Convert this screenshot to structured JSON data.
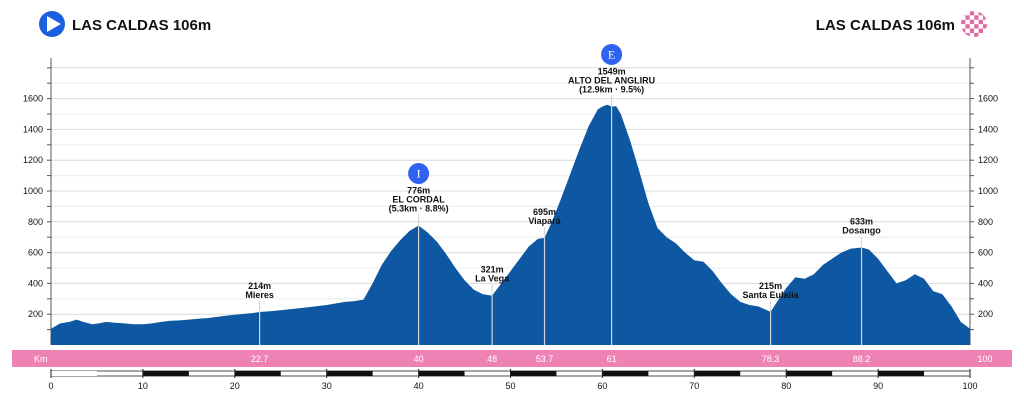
{
  "header": {
    "start_label": "LAS CALDAS 106m",
    "finish_label": "LAS CALDAS 106m",
    "start_icon": "start-arrow-icon",
    "finish_icon": "checkered-flag-icon"
  },
  "colors": {
    "profile": "#0e57a2",
    "km_band": "#ee82b4",
    "badge": "#2f62f0",
    "grid": "#dddddd"
  },
  "chart_data": {
    "type": "area",
    "title": "",
    "xlabel": "",
    "ylabel": "",
    "xlim": [
      0,
      100
    ],
    "ylim": [
      0,
      1800
    ],
    "y_ticks": [
      200,
      400,
      600,
      800,
      1000,
      1200,
      1400,
      1600
    ],
    "x_ticks": [
      0,
      10,
      20,
      30,
      40,
      50,
      60,
      70,
      80,
      90,
      100
    ],
    "grid": true,
    "profile": {
      "x": [
        0,
        1,
        2,
        2.8,
        3.5,
        4.5,
        5.2,
        6,
        7,
        8,
        9,
        10,
        11,
        12,
        13,
        14,
        15,
        16,
        17,
        18,
        19,
        20,
        21,
        22,
        22.7,
        24,
        26,
        28,
        30,
        32,
        33,
        34,
        35,
        36,
        37,
        38,
        39,
        40,
        41,
        42,
        43,
        44,
        45,
        46,
        47,
        48,
        49,
        50,
        51,
        52,
        53,
        53.7,
        54.5,
        55.5,
        56.5,
        57.5,
        58.5,
        59.5,
        60,
        60.5,
        61,
        61.5,
        62,
        63,
        64,
        65,
        66,
        67,
        68,
        69,
        70,
        71,
        72,
        73,
        74,
        75,
        76,
        77,
        78.3,
        79,
        80,
        81,
        82,
        83,
        84,
        85,
        86,
        87,
        88.2,
        89,
        90,
        91,
        92,
        93,
        94,
        95,
        96,
        97,
        98,
        99,
        100
      ],
      "y": [
        106,
        140,
        150,
        165,
        150,
        135,
        140,
        150,
        145,
        140,
        135,
        135,
        140,
        150,
        158,
        160,
        165,
        170,
        175,
        182,
        190,
        197,
        202,
        208,
        214,
        220,
        232,
        245,
        260,
        280,
        285,
        295,
        400,
        520,
        610,
        680,
        740,
        776,
        730,
        670,
        590,
        500,
        420,
        360,
        330,
        321,
        400,
        480,
        560,
        640,
        690,
        695,
        800,
        950,
        1110,
        1270,
        1420,
        1530,
        1549,
        1560,
        1549,
        1550,
        1500,
        1330,
        1130,
        920,
        760,
        700,
        660,
        600,
        550,
        540,
        480,
        400,
        330,
        280,
        260,
        250,
        215,
        280,
        370,
        440,
        430,
        460,
        520,
        560,
        600,
        625,
        633,
        620,
        560,
        480,
        400,
        420,
        460,
        430,
        350,
        330,
        250,
        150,
        106
      ]
    },
    "waypoints": [
      {
        "km": 22.7,
        "alt": "214m",
        "name": "Mieres",
        "info": "",
        "badge": ""
      },
      {
        "km": 40,
        "alt": "776m",
        "name": "EL CORDAL",
        "info": "(5.3km · 8.8%)",
        "badge": "I"
      },
      {
        "km": 48,
        "alt": "321m",
        "name": "La Vega",
        "info": "",
        "badge": ""
      },
      {
        "km": 53.7,
        "alt": "695m",
        "name": "Viapará",
        "info": "",
        "badge": ""
      },
      {
        "km": 61,
        "alt": "1549m",
        "name": "ALTO DEL ANGLIRU",
        "info": "(12.9km · 9.5%)",
        "badge": "E"
      },
      {
        "km": 78.3,
        "alt": "215m",
        "name": "Santa Eulalia",
        "info": "",
        "badge": ""
      },
      {
        "km": 88.2,
        "alt": "633m",
        "name": "Dosango",
        "info": "",
        "badge": ""
      }
    ],
    "km_band": {
      "title": "Km",
      "marks": [
        "22.7",
        "40",
        "48",
        "53.7",
        "61",
        "78.3",
        "88.2",
        "100"
      ]
    }
  }
}
